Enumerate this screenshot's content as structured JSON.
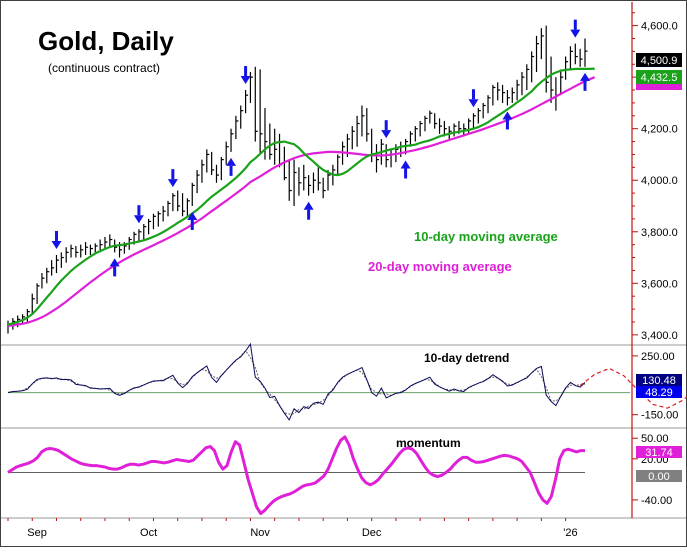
{
  "chart_data": {
    "type": "line",
    "title": "Gold, Daily",
    "subtitle": "(continuous contract)",
    "x_labels": [
      "Sep",
      "Oct",
      "Nov",
      "Dec",
      "'26"
    ],
    "price_panel": {
      "ylim": [
        3380,
        4680
      ],
      "y_ticks": [
        3400,
        3600,
        3800,
        4000,
        4200,
        4400,
        4600
      ],
      "y_tick_labels": [
        "3,400.0",
        "3,600.0",
        "3,800.0",
        "4,000.0",
        "4,200.0",
        "4,400.0",
        "4,600.0"
      ],
      "bars": [
        {
          "h": 3455,
          "l": 3405,
          "c": 3440
        },
        {
          "h": 3465,
          "l": 3420,
          "c": 3452
        },
        {
          "h": 3475,
          "l": 3430,
          "c": 3460
        },
        {
          "h": 3480,
          "l": 3440,
          "c": 3470
        },
        {
          "h": 3500,
          "l": 3450,
          "c": 3490
        },
        {
          "h": 3560,
          "l": 3480,
          "c": 3540
        },
        {
          "h": 3600,
          "l": 3520,
          "c": 3590
        },
        {
          "h": 3640,
          "l": 3580,
          "c": 3620
        },
        {
          "h": 3660,
          "l": 3600,
          "c": 3645
        },
        {
          "h": 3690,
          "l": 3630,
          "c": 3660
        },
        {
          "h": 3710,
          "l": 3640,
          "c": 3690
        },
        {
          "h": 3720,
          "l": 3660,
          "c": 3700
        },
        {
          "h": 3740,
          "l": 3680,
          "c": 3720
        },
        {
          "h": 3750,
          "l": 3700,
          "c": 3735
        },
        {
          "h": 3745,
          "l": 3700,
          "c": 3720
        },
        {
          "h": 3750,
          "l": 3700,
          "c": 3730
        },
        {
          "h": 3760,
          "l": 3710,
          "c": 3740
        },
        {
          "h": 3750,
          "l": 3710,
          "c": 3735
        },
        {
          "h": 3755,
          "l": 3720,
          "c": 3745
        },
        {
          "h": 3770,
          "l": 3720,
          "c": 3750
        },
        {
          "h": 3780,
          "l": 3730,
          "c": 3760
        },
        {
          "h": 3790,
          "l": 3740,
          "c": 3770
        },
        {
          "h": 3770,
          "l": 3720,
          "c": 3740
        },
        {
          "h": 3760,
          "l": 3700,
          "c": 3730
        },
        {
          "h": 3760,
          "l": 3715,
          "c": 3745
        },
        {
          "h": 3780,
          "l": 3730,
          "c": 3770
        },
        {
          "h": 3800,
          "l": 3750,
          "c": 3790
        },
        {
          "h": 3810,
          "l": 3760,
          "c": 3800
        },
        {
          "h": 3830,
          "l": 3770,
          "c": 3820
        },
        {
          "h": 3850,
          "l": 3790,
          "c": 3840
        },
        {
          "h": 3870,
          "l": 3810,
          "c": 3860
        },
        {
          "h": 3880,
          "l": 3820,
          "c": 3870
        },
        {
          "h": 3900,
          "l": 3840,
          "c": 3880
        },
        {
          "h": 3920,
          "l": 3860,
          "c": 3910
        },
        {
          "h": 3950,
          "l": 3880,
          "c": 3940
        },
        {
          "h": 3960,
          "l": 3880,
          "c": 3900
        },
        {
          "h": 3950,
          "l": 3860,
          "c": 3880
        },
        {
          "h": 3930,
          "l": 3860,
          "c": 3920
        },
        {
          "h": 3990,
          "l": 3900,
          "c": 3980
        },
        {
          "h": 4040,
          "l": 3950,
          "c": 4020
        },
        {
          "h": 4080,
          "l": 3990,
          "c": 4060
        },
        {
          "h": 4120,
          "l": 4030,
          "c": 4100
        },
        {
          "h": 4110,
          "l": 4020,
          "c": 4040
        },
        {
          "h": 4060,
          "l": 3990,
          "c": 4020
        },
        {
          "h": 4090,
          "l": 4000,
          "c": 4080
        },
        {
          "h": 4150,
          "l": 4060,
          "c": 4130
        },
        {
          "h": 4200,
          "l": 4110,
          "c": 4180
        },
        {
          "h": 4250,
          "l": 4160,
          "c": 4230
        },
        {
          "h": 4290,
          "l": 4200,
          "c": 4270
        },
        {
          "h": 4350,
          "l": 4260,
          "c": 4330
        },
        {
          "h": 4420,
          "l": 4300,
          "c": 4400
        },
        {
          "h": 4440,
          "l": 4150,
          "c": 4190
        },
        {
          "h": 4430,
          "l": 4100,
          "c": 4180
        },
        {
          "h": 4280,
          "l": 4080,
          "c": 4150
        },
        {
          "h": 4220,
          "l": 4080,
          "c": 4100
        },
        {
          "h": 4200,
          "l": 4060,
          "c": 4120
        },
        {
          "h": 4180,
          "l": 4050,
          "c": 4060
        },
        {
          "h": 4130,
          "l": 4000,
          "c": 4010
        },
        {
          "h": 4080,
          "l": 3920,
          "c": 3960
        },
        {
          "h": 4080,
          "l": 3900,
          "c": 4030
        },
        {
          "h": 4050,
          "l": 3940,
          "c": 3990
        },
        {
          "h": 4060,
          "l": 3960,
          "c": 4010
        },
        {
          "h": 4020,
          "l": 3940,
          "c": 3980
        },
        {
          "h": 4030,
          "l": 3950,
          "c": 4000
        },
        {
          "h": 4050,
          "l": 3960,
          "c": 3990
        },
        {
          "h": 4010,
          "l": 3930,
          "c": 3960
        },
        {
          "h": 4040,
          "l": 3960,
          "c": 4020
        },
        {
          "h": 4060,
          "l": 3980,
          "c": 4040
        },
        {
          "h": 4100,
          "l": 4020,
          "c": 4090
        },
        {
          "h": 4150,
          "l": 4060,
          "c": 4130
        },
        {
          "h": 4180,
          "l": 4090,
          "c": 4160
        },
        {
          "h": 4210,
          "l": 4120,
          "c": 4190
        },
        {
          "h": 4250,
          "l": 4130,
          "c": 4220
        },
        {
          "h": 4290,
          "l": 4170,
          "c": 4250
        },
        {
          "h": 4280,
          "l": 4150,
          "c": 4180
        },
        {
          "h": 4200,
          "l": 4070,
          "c": 4100
        },
        {
          "h": 4140,
          "l": 4030,
          "c": 4080
        },
        {
          "h": 4160,
          "l": 4060,
          "c": 4140
        },
        {
          "h": 4140,
          "l": 4050,
          "c": 4080
        },
        {
          "h": 4120,
          "l": 4050,
          "c": 4100
        },
        {
          "h": 4140,
          "l": 4070,
          "c": 4120
        },
        {
          "h": 4150,
          "l": 4090,
          "c": 4130
        },
        {
          "h": 4160,
          "l": 4100,
          "c": 4150
        },
        {
          "h": 4190,
          "l": 4130,
          "c": 4180
        },
        {
          "h": 4210,
          "l": 4150,
          "c": 4200
        },
        {
          "h": 4230,
          "l": 4170,
          "c": 4220
        },
        {
          "h": 4250,
          "l": 4190,
          "c": 4240
        },
        {
          "h": 4270,
          "l": 4220,
          "c": 4260
        },
        {
          "h": 4260,
          "l": 4200,
          "c": 4220
        },
        {
          "h": 4240,
          "l": 4180,
          "c": 4210
        },
        {
          "h": 4230,
          "l": 4170,
          "c": 4200
        },
        {
          "h": 4210,
          "l": 4160,
          "c": 4190
        },
        {
          "h": 4220,
          "l": 4170,
          "c": 4210
        },
        {
          "h": 4230,
          "l": 4180,
          "c": 4200
        },
        {
          "h": 4220,
          "l": 4170,
          "c": 4200
        },
        {
          "h": 4240,
          "l": 4180,
          "c": 4230
        },
        {
          "h": 4260,
          "l": 4200,
          "c": 4250
        },
        {
          "h": 4280,
          "l": 4220,
          "c": 4270
        },
        {
          "h": 4300,
          "l": 4240,
          "c": 4290
        },
        {
          "h": 4330,
          "l": 4260,
          "c": 4320
        },
        {
          "h": 4370,
          "l": 4290,
          "c": 4360
        },
        {
          "h": 4380,
          "l": 4310,
          "c": 4350
        },
        {
          "h": 4370,
          "l": 4300,
          "c": 4340
        },
        {
          "h": 4350,
          "l": 4290,
          "c": 4320
        },
        {
          "h": 4360,
          "l": 4300,
          "c": 4340
        },
        {
          "h": 4390,
          "l": 4310,
          "c": 4370
        },
        {
          "h": 4420,
          "l": 4330,
          "c": 4400
        },
        {
          "h": 4450,
          "l": 4350,
          "c": 4430
        },
        {
          "h": 4500,
          "l": 4380,
          "c": 4480
        },
        {
          "h": 4560,
          "l": 4420,
          "c": 4530
        },
        {
          "h": 4590,
          "l": 4470,
          "c": 4560
        },
        {
          "h": 4600,
          "l": 4340,
          "c": 4380
        },
        {
          "h": 4480,
          "l": 4300,
          "c": 4350
        },
        {
          "h": 4400,
          "l": 4270,
          "c": 4330
        },
        {
          "h": 4430,
          "l": 4330,
          "c": 4400
        },
        {
          "h": 4480,
          "l": 4390,
          "c": 4460
        },
        {
          "h": 4520,
          "l": 4430,
          "c": 4500
        },
        {
          "h": 4530,
          "l": 4450,
          "c": 4480
        },
        {
          "h": 4510,
          "l": 4440,
          "c": 4470
        },
        {
          "h": 4550,
          "l": 4440,
          "c": 4501
        }
      ],
      "ma10": [
        3440,
        3444,
        3450,
        3457,
        3467,
        3480,
        3500,
        3522,
        3545,
        3566,
        3590,
        3611,
        3630,
        3648,
        3664,
        3678,
        3692,
        3704,
        3716,
        3725,
        3733,
        3741,
        3746,
        3748,
        3751,
        3754,
        3758,
        3762,
        3767,
        3773,
        3781,
        3789,
        3799,
        3810,
        3822,
        3835,
        3846,
        3858,
        3871,
        3885,
        3901,
        3919,
        3936,
        3950,
        3964,
        3978,
        3993,
        4009,
        4027,
        4047,
        4070,
        4085,
        4102,
        4120,
        4134,
        4145,
        4148,
        4150,
        4145,
        4140,
        4125,
        4105,
        4088,
        4072,
        4055,
        4040,
        4030,
        4022,
        4020,
        4025,
        4035,
        4050,
        4065,
        4080,
        4092,
        4100,
        4104,
        4109,
        4115,
        4120,
        4124,
        4130,
        4133,
        4135,
        4138,
        4145,
        4150,
        4155,
        4162,
        4170,
        4176,
        4180,
        4185,
        4188,
        4192,
        4195,
        4200,
        4206,
        4215,
        4225,
        4238,
        4250,
        4262,
        4275,
        4288,
        4302,
        4315,
        4330,
        4345,
        4365,
        4382,
        4396,
        4410,
        4418,
        4425,
        4428,
        4430,
        4432,
        4432,
        4432,
        4432,
        4433
      ],
      "ma20": [
        3435,
        3437,
        3440,
        3443,
        3447,
        3453,
        3460,
        3468,
        3478,
        3490,
        3502,
        3515,
        3529,
        3544,
        3559,
        3574,
        3589,
        3604,
        3618,
        3632,
        3645,
        3658,
        3670,
        3681,
        3692,
        3702,
        3712,
        3721,
        3730,
        3739,
        3748,
        3757,
        3766,
        3775,
        3785,
        3795,
        3806,
        3816,
        3828,
        3840,
        3852,
        3866,
        3880,
        3893,
        3907,
        3920,
        3934,
        3948,
        3962,
        3977,
        3993,
        4004,
        4015,
        4027,
        4039,
        4050,
        4060,
        4070,
        4078,
        4086,
        4092,
        4097,
        4101,
        4104,
        4106,
        4108,
        4110,
        4110,
        4109,
        4108,
        4106,
        4104,
        4102,
        4100,
        4098,
        4097,
        4096,
        4096,
        4097,
        4099,
        4102,
        4105,
        4109,
        4113,
        4117,
        4122,
        4127,
        4132,
        4138,
        4144,
        4150,
        4156,
        4162,
        4168,
        4174,
        4180,
        4186,
        4192,
        4198,
        4205,
        4212,
        4219,
        4226,
        4233,
        4241,
        4249,
        4257,
        4266,
        4275,
        4285,
        4295,
        4305,
        4315,
        4325,
        4335,
        4345,
        4355,
        4365,
        4375,
        4385,
        4392,
        4400
      ],
      "arrows_down_bar": [
        10,
        27,
        34,
        49,
        78,
        96,
        117
      ],
      "arrows_up_bar": [
        22,
        38,
        46,
        62,
        82,
        103,
        119
      ]
    },
    "detrend_panel": {
      "title": "10-day detrend",
      "ylim": [
        -220,
        290
      ],
      "y_ticks": [
        250,
        -150
      ],
      "y_tick_labels": [
        "250.00",
        "-150.00"
      ],
      "reference_value": 0,
      "projection": [
        {
          "i": 118,
          "v": 48
        },
        {
          "i": 121,
          "v": 125
        },
        {
          "i": 124,
          "v": 165
        },
        {
          "i": 127,
          "v": 115
        },
        {
          "i": 130,
          "v": 15
        },
        {
          "i": 133,
          "v": -80
        },
        {
          "i": 136,
          "v": -105
        },
        {
          "i": 139,
          "v": -55
        },
        {
          "i": 142,
          "v": 25
        }
      ]
    },
    "momentum_panel": {
      "title": "momentum",
      "ylim": [
        -62,
        62
      ],
      "y_ticks": [
        50,
        20,
        -40
      ],
      "y_tick_labels": [
        "50.00",
        "20.00",
        "-40.00"
      ],
      "reference_value": 0,
      "values": [
        0,
        4,
        8,
        10,
        12,
        14,
        17,
        22,
        30,
        34,
        35,
        34,
        32,
        28,
        24,
        20,
        17,
        14,
        12,
        11,
        10,
        10,
        9,
        8,
        6,
        5,
        5,
        7,
        10,
        12,
        12,
        11,
        12,
        14,
        16,
        16,
        15,
        14,
        15,
        17,
        19,
        18,
        17,
        16,
        18,
        24,
        30,
        36,
        38,
        32,
        15,
        5,
        10,
        30,
        45,
        40,
        15,
        -10,
        -30,
        -50,
        -60,
        -55,
        -48,
        -42,
        -38,
        -35,
        -33,
        -31,
        -28,
        -24,
        -20,
        -18,
        -17,
        -15,
        -10,
        -5,
        5,
        20,
        35,
        47,
        52,
        40,
        20,
        5,
        -8,
        -15,
        -18,
        -15,
        -10,
        -2,
        5,
        12,
        20,
        28,
        34,
        36,
        34,
        28,
        18,
        8,
        0,
        -4,
        -6,
        -4,
        0,
        5,
        12,
        18,
        22,
        22,
        18,
        15,
        15,
        16,
        18,
        20,
        22,
        24,
        25,
        24,
        22,
        20,
        16,
        8,
        0,
        -15,
        -30,
        -40,
        -45,
        -35,
        -10,
        20,
        32,
        34,
        32,
        30,
        32,
        32
      ]
    },
    "legend_labels": {
      "ma10": "10-day moving average",
      "ma20": "20-day moving average"
    },
    "value_tags": {
      "last_price": "4,500.9",
      "ma10": "4,432.5",
      "detrend_a": "130.48",
      "detrend_b": "48.29",
      "momentum": "31.74",
      "zero": "0.00"
    }
  },
  "colors": {
    "price_bars": "#000000",
    "ma10": "#1aa31a",
    "ma20": "#e020d8",
    "arrows": "#1414e6",
    "detrend_a": "#0a0a5a",
    "detrend_b": "#606060",
    "projection": "#d42020",
    "momentum": "#e020d8",
    "axis": "#c01010",
    "reference_line": "#6aa06a",
    "tag_price": "#000000",
    "tag_ma10": "#1aa31a",
    "tag_detrend_a": "#000080",
    "tag_detrend_b": "#0000ee",
    "tag_momentum": "#e020d8",
    "tag_zero": "#808080"
  }
}
